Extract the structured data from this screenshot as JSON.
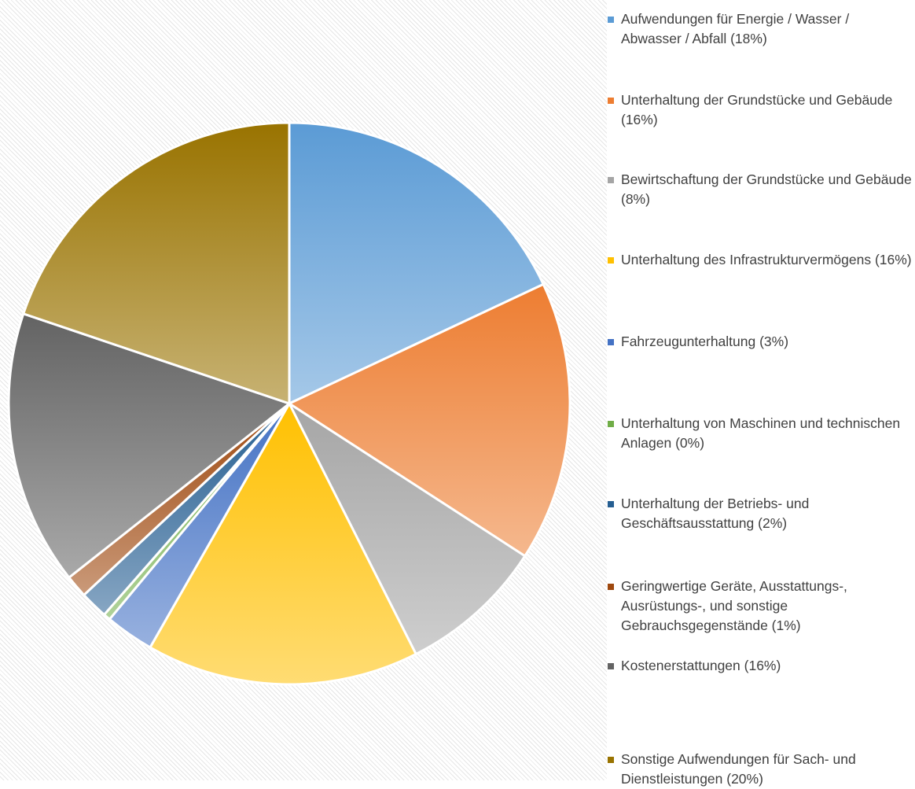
{
  "chart_data": {
    "type": "pie",
    "categories": [
      "Aufwendungen für Energie / Wasser / Abwasser / Abfall (18%)",
      "Unterhaltung der Grundstücke und Gebäude (16%)",
      "Bewirtschaftung der Grundstücke und Gebäude (8%)",
      "Unterhaltung des Infrastrukturvermögens (16%)",
      "Fahrzeugunterhaltung (3%)",
      "Unterhaltung von Maschinen und technischen Anlagen (0%)",
      "Unterhaltung der Betriebs- und Geschäftsausstattung (2%)",
      "Geringwertige Geräte, Ausstattungs-, Ausrüstungs-, und sonstige Gebrauchsgegenstände (1%)",
      "Kostenerstattungen (16%)",
      "Sonstige Aufwendungen für Sach- und Dienstleistungen (20%)"
    ],
    "values": [
      18,
      16.1,
      8.4,
      15.7,
      2.8,
      0.4,
      1.6,
      1.3,
      15.8,
      19.8
    ],
    "colors": [
      "#5b9bd5",
      "#ed7d31",
      "#a5a5a5",
      "#ffc000",
      "#4472c4",
      "#70ad47",
      "#255e91",
      "#9e480e",
      "#636363",
      "#997300"
    ],
    "legend": "right"
  }
}
